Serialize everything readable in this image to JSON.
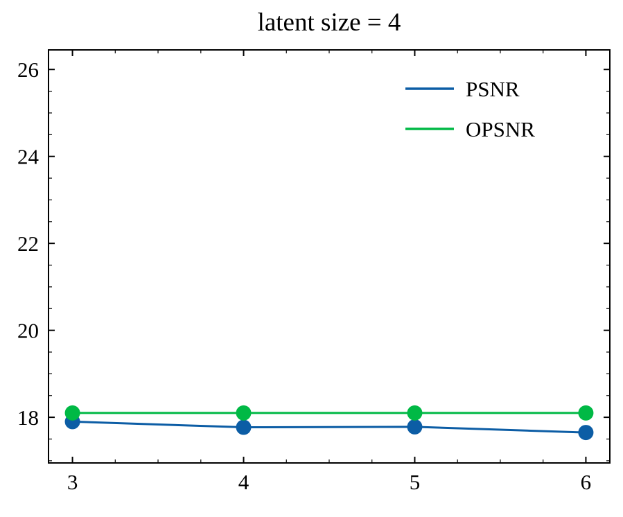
{
  "chart_data": {
    "type": "line",
    "title": "latent size = 4",
    "x": [
      3,
      4,
      5,
      6
    ],
    "series": [
      {
        "name": "PSNR",
        "color": "#0C5DA5",
        "values": [
          17.9,
          17.77,
          17.78,
          17.65
        ]
      },
      {
        "name": "OPSNR",
        "color": "#00B945",
        "values": [
          18.1,
          18.1,
          18.1,
          18.1
        ]
      }
    ],
    "xlabel": "",
    "ylabel": "",
    "xlim": [
      2.86,
      6.14
    ],
    "ylim": [
      16.95,
      26.45
    ],
    "xticks": [
      3,
      4,
      5,
      6
    ],
    "yticks": [
      18,
      20,
      22,
      24,
      26
    ],
    "grid": false,
    "legend_position": "upper right",
    "frame_color": "#000000",
    "marker_radius": 11,
    "line_width": 3
  }
}
